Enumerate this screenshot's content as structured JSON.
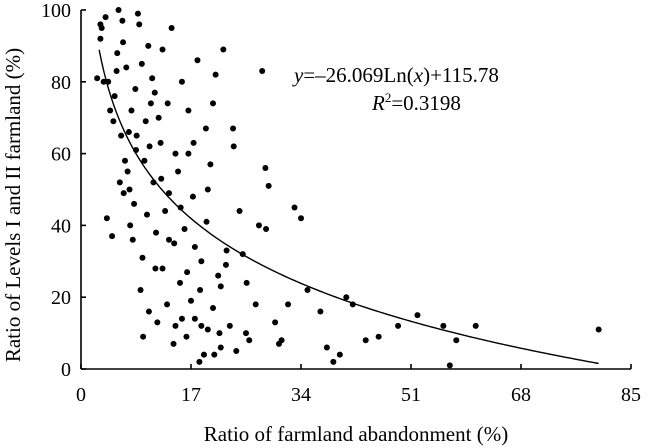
{
  "chart_data": {
    "type": "scatter",
    "xlabel": "Ratio of farmland abandonment (%)",
    "ylabel": "Ratio of Levels I and II farmland (%)",
    "xlim": [
      0,
      85
    ],
    "ylim": [
      0,
      100
    ],
    "x_ticks": [
      "0",
      "17",
      "34",
      "51",
      "68",
      "85"
    ],
    "y_ticks": [
      "0",
      "20",
      "40",
      "60",
      "80",
      "100"
    ],
    "grid": false,
    "equation": {
      "y_var": "y",
      "mid": "=–26.069Ln(",
      "x_var": "x",
      "end": ")+115.78",
      "r_var": "R",
      "r_sup": "2",
      "r_rest": "=0.3198"
    },
    "trendline": {
      "type": "logarithmic",
      "a": -26.069,
      "b": 115.78,
      "x_range": [
        2.8,
        80
      ]
    },
    "points": [
      [
        2.5,
        81
      ],
      [
        3,
        92
      ],
      [
        3,
        96
      ],
      [
        3.5,
        80
      ],
      [
        3.8,
        98
      ],
      [
        4,
        42
      ],
      [
        4.5,
        72
      ],
      [
        4.8,
        37
      ],
      [
        5,
        69
      ],
      [
        5.2,
        76
      ],
      [
        5.5,
        83
      ],
      [
        5.8,
        100
      ],
      [
        6,
        52
      ],
      [
        6.2,
        65
      ],
      [
        6.5,
        91
      ],
      [
        6.8,
        58
      ],
      [
        7,
        84
      ],
      [
        7.2,
        55
      ],
      [
        7.5,
        50
      ],
      [
        7.8,
        72
      ],
      [
        8,
        36
      ],
      [
        8.2,
        46
      ],
      [
        8.5,
        61
      ],
      [
        8.8,
        99
      ],
      [
        9,
        96
      ],
      [
        9.2,
        22
      ],
      [
        9.5,
        31
      ],
      [
        9.8,
        58
      ],
      [
        10,
        69
      ],
      [
        10.2,
        43
      ],
      [
        10.5,
        16
      ],
      [
        10.8,
        74
      ],
      [
        11,
        81
      ],
      [
        11.2,
        52
      ],
      [
        11.5,
        28
      ],
      [
        11.8,
        13
      ],
      [
        12,
        70
      ],
      [
        12.3,
        63
      ],
      [
        12.6,
        89
      ],
      [
        13,
        44
      ],
      [
        13.3,
        18
      ],
      [
        13.6,
        36
      ],
      [
        14,
        95
      ],
      [
        14.3,
        7
      ],
      [
        14.6,
        12
      ],
      [
        15,
        55
      ],
      [
        15.3,
        24
      ],
      [
        15.6,
        80
      ],
      [
        16,
        39
      ],
      [
        16.3,
        9
      ],
      [
        16.6,
        60
      ],
      [
        17,
        19
      ],
      [
        17.3,
        48
      ],
      [
        17.6,
        14
      ],
      [
        18,
        86
      ],
      [
        18.3,
        2
      ],
      [
        18.6,
        30
      ],
      [
        19,
        4
      ],
      [
        19.3,
        67
      ],
      [
        19.6,
        11
      ],
      [
        20,
        57
      ],
      [
        20.4,
        17
      ],
      [
        20.8,
        82
      ],
      [
        21.2,
        26
      ],
      [
        21.6,
        6
      ],
      [
        22,
        89
      ],
      [
        22.5,
        33
      ],
      [
        23,
        12
      ],
      [
        23.5,
        67
      ],
      [
        24,
        5
      ],
      [
        24.5,
        44
      ],
      [
        25,
        32
      ],
      [
        25.5,
        10
      ],
      [
        26,
        8
      ],
      [
        27,
        18
      ],
      [
        27.5,
        40
      ],
      [
        28,
        83
      ],
      [
        28.5,
        56
      ],
      [
        29,
        51
      ],
      [
        30,
        13
      ],
      [
        31,
        8
      ],
      [
        32,
        18
      ],
      [
        33,
        45
      ],
      [
        34,
        42
      ],
      [
        35,
        22
      ],
      [
        37,
        16
      ],
      [
        38,
        6
      ],
      [
        39,
        2
      ],
      [
        40,
        4
      ],
      [
        41,
        20
      ],
      [
        42,
        18
      ],
      [
        44,
        8
      ],
      [
        46,
        9
      ],
      [
        49,
        12
      ],
      [
        52,
        15
      ],
      [
        56,
        12
      ],
      [
        57,
        1
      ],
      [
        58,
        8
      ],
      [
        61,
        12
      ],
      [
        80,
        11
      ],
      [
        3.2,
        95
      ],
      [
        4.2,
        80
      ],
      [
        5.6,
        88
      ],
      [
        6.4,
        97
      ],
      [
        7.4,
        66
      ],
      [
        8.4,
        78
      ],
      [
        9.4,
        85
      ],
      [
        10.4,
        90
      ],
      [
        11.4,
        77
      ],
      [
        12.4,
        53
      ],
      [
        13.4,
        74
      ],
      [
        14.4,
        35
      ],
      [
        15.4,
        45
      ],
      [
        16.4,
        27
      ],
      [
        17.4,
        63
      ],
      [
        18.4,
        22
      ],
      [
        19.4,
        41
      ],
      [
        20.4,
        74
      ],
      [
        21.4,
        10
      ],
      [
        22.4,
        29
      ],
      [
        6.6,
        49
      ],
      [
        7.6,
        40
      ],
      [
        8.6,
        65
      ],
      [
        9.6,
        9
      ],
      [
        10.6,
        62
      ],
      [
        11.6,
        38
      ],
      [
        12.6,
        28
      ],
      [
        13.6,
        49
      ],
      [
        14.6,
        60
      ],
      [
        15.6,
        14
      ],
      [
        16.6,
        72
      ],
      [
        17.6,
        34
      ],
      [
        18.6,
        12
      ],
      [
        19.6,
        50
      ],
      [
        20.6,
        4
      ],
      [
        21.6,
        23
      ],
      [
        23.6,
        62
      ],
      [
        25.6,
        24
      ],
      [
        28.6,
        39
      ],
      [
        30.6,
        7
      ]
    ]
  }
}
